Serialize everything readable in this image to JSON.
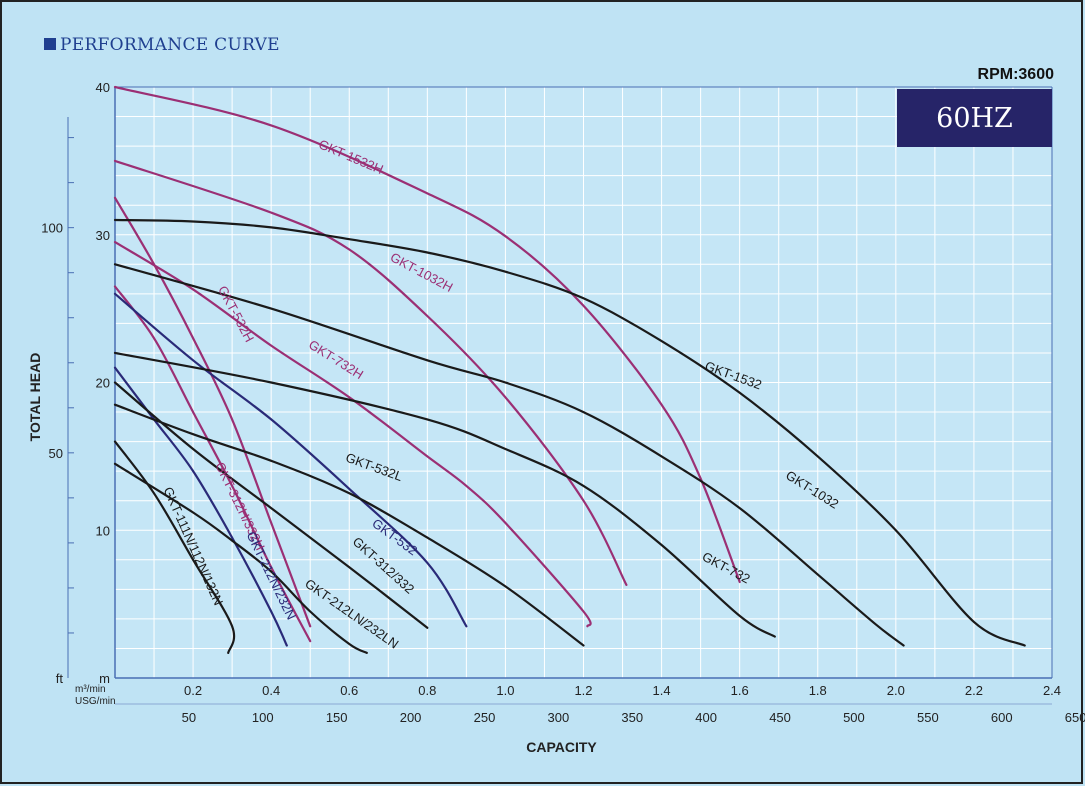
{
  "title": "PERFORMANCE CURVE",
  "rpm_label": "RPM:3600",
  "freq_label": "60HZ",
  "colors": {
    "background": "#bfe3f4",
    "grid": "#ffffff",
    "plot_bg": "#c5e6f6",
    "black": "#1a1a1a",
    "purple": "#9b2f74",
    "navy": "#2a2a78",
    "badge": "#262468",
    "title": "#1f3f8f"
  },
  "chart_data": {
    "type": "line",
    "title": "PERFORMANCE CURVE",
    "xlabel": "CAPACITY",
    "ylabel": "TOTAL HEAD",
    "xlim": [
      0,
      2.4
    ],
    "ylim": [
      0,
      40
    ],
    "grid": true,
    "x_unit_label": "m³/min",
    "x2_unit_label": "USG/min",
    "y_unit_label": "m",
    "y2_unit_label": "ft",
    "x_ticks": [
      "0.2",
      "0.4",
      "0.6",
      "0.8",
      "1.0",
      "1.2",
      "1.4",
      "1.6",
      "1.8",
      "2.0",
      "2.2",
      "2.4"
    ],
    "x2_ticks": [
      "50",
      "100",
      "150",
      "200",
      "250",
      "300",
      "350",
      "400",
      "450",
      "500",
      "550",
      "600",
      "650"
    ],
    "y_ticks": [
      "10",
      "20",
      "30",
      "40"
    ],
    "y2_ticks": [
      "50",
      "100"
    ],
    "series": [
      {
        "name": "GKT-1532H",
        "color": "purple",
        "points": [
          [
            0,
            40
          ],
          [
            0.4,
            37.4
          ],
          [
            0.8,
            32.8
          ],
          [
            1.0,
            29.9
          ],
          [
            1.2,
            25.2
          ],
          [
            1.4,
            18.5
          ],
          [
            1.5,
            13.5
          ],
          [
            1.6,
            6.5
          ]
        ]
      },
      {
        "name": "GKT-1032H",
        "color": "purple",
        "points": [
          [
            0,
            35
          ],
          [
            0.4,
            31.5
          ],
          [
            0.6,
            29
          ],
          [
            0.8,
            24.5
          ],
          [
            1.0,
            19
          ],
          [
            1.2,
            12
          ],
          [
            1.31,
            6.3
          ]
        ]
      },
      {
        "name": "GKT-732H",
        "color": "purple",
        "points": [
          [
            0,
            29.5
          ],
          [
            0.2,
            26.3
          ],
          [
            0.4,
            22.5
          ],
          [
            0.6,
            19
          ],
          [
            0.8,
            15
          ],
          [
            0.9,
            13
          ],
          [
            1.0,
            10.5
          ],
          [
            1.2,
            4.5
          ],
          [
            1.21,
            3.5
          ]
        ]
      },
      {
        "name": "GKT-532H",
        "color": "purple",
        "points": [
          [
            0,
            32.5
          ],
          [
            0.1,
            28
          ],
          [
            0.2,
            23
          ],
          [
            0.3,
            17.5
          ],
          [
            0.4,
            10.5
          ],
          [
            0.5,
            3.5
          ]
        ]
      },
      {
        "name": "GKT-312H/332H",
        "color": "purple",
        "points": [
          [
            0,
            26.5
          ],
          [
            0.1,
            23
          ],
          [
            0.2,
            18
          ],
          [
            0.3,
            13
          ],
          [
            0.4,
            7.5
          ],
          [
            0.5,
            2.5
          ]
        ]
      },
      {
        "name": "GKT-532",
        "color": "navy",
        "points": [
          [
            0,
            26
          ],
          [
            0.2,
            21.5
          ],
          [
            0.4,
            17.5
          ],
          [
            0.6,
            12.8
          ],
          [
            0.8,
            7.8
          ],
          [
            0.9,
            3.5
          ]
        ]
      },
      {
        "name": "GKT-212N/232N",
        "color": "navy",
        "points": [
          [
            0,
            21
          ],
          [
            0.1,
            17.5
          ],
          [
            0.2,
            14
          ],
          [
            0.3,
            9.5
          ],
          [
            0.4,
            4.5
          ],
          [
            0.44,
            2.2
          ]
        ]
      },
      {
        "name": "GKT-1532",
        "color": "black",
        "points": [
          [
            0,
            31
          ],
          [
            0.2,
            30.9
          ],
          [
            0.4,
            30.5
          ],
          [
            0.6,
            29.7
          ],
          [
            0.8,
            28.8
          ],
          [
            1.0,
            27.5
          ],
          [
            1.2,
            25.7
          ],
          [
            1.4,
            22.8
          ],
          [
            1.6,
            19.3
          ],
          [
            1.8,
            15
          ],
          [
            2.0,
            10
          ],
          [
            2.2,
            3.8
          ],
          [
            2.33,
            2.2
          ]
        ]
      },
      {
        "name": "GKT-1032",
        "color": "black",
        "points": [
          [
            0,
            28
          ],
          [
            0.4,
            25
          ],
          [
            0.8,
            21.5
          ],
          [
            1.0,
            20
          ],
          [
            1.2,
            18
          ],
          [
            1.4,
            15
          ],
          [
            1.6,
            11.5
          ],
          [
            1.8,
            7
          ],
          [
            1.95,
            3.6
          ],
          [
            2.02,
            2.2
          ]
        ]
      },
      {
        "name": "GKT-732",
        "color": "black",
        "points": [
          [
            0,
            22
          ],
          [
            0.4,
            20
          ],
          [
            0.8,
            17.5
          ],
          [
            1.0,
            15.5
          ],
          [
            1.2,
            13
          ],
          [
            1.4,
            9
          ],
          [
            1.6,
            4.2
          ],
          [
            1.69,
            2.8
          ]
        ]
      },
      {
        "name": "GKT-532L",
        "color": "black",
        "points": [
          [
            0,
            18.5
          ],
          [
            0.2,
            16.5
          ],
          [
            0.4,
            14.7
          ],
          [
            0.6,
            12.5
          ],
          [
            0.8,
            9.5
          ],
          [
            1.0,
            6.2
          ],
          [
            1.2,
            2.2
          ]
        ]
      },
      {
        "name": "GKT-312/332",
        "color": "black",
        "points": [
          [
            0,
            20
          ],
          [
            0.2,
            15.5
          ],
          [
            0.4,
            11.5
          ],
          [
            0.6,
            7.5
          ],
          [
            0.8,
            3.4
          ]
        ]
      },
      {
        "name": "GKT-212LN/232LN",
        "color": "black",
        "points": [
          [
            0,
            14.5
          ],
          [
            0.2,
            11.2
          ],
          [
            0.3,
            9.3
          ],
          [
            0.4,
            7.2
          ],
          [
            0.5,
            4.5
          ],
          [
            0.6,
            2.3
          ],
          [
            0.645,
            1.7
          ]
        ]
      },
      {
        "name": "GKT-111N/112N/132N",
        "color": "black",
        "points": [
          [
            0,
            16
          ],
          [
            0.1,
            12.5
          ],
          [
            0.2,
            8
          ],
          [
            0.3,
            3.5
          ],
          [
            0.29,
            1.7
          ]
        ]
      }
    ],
    "curve_labels": [
      {
        "text": "GKT-1532H",
        "x": 0.6,
        "y": 35,
        "angle": 23,
        "color": "purple"
      },
      {
        "text": "GKT-1032H",
        "x": 0.78,
        "y": 27.2,
        "angle": 28,
        "color": "purple"
      },
      {
        "text": "GKT-732H",
        "x": 0.56,
        "y": 21.3,
        "angle": 32,
        "color": "purple"
      },
      {
        "text": "GKT-532H",
        "x": 0.3,
        "y": 24.5,
        "angle": 62,
        "color": "purple"
      },
      {
        "text": "GKT-312H/332H",
        "x": 0.31,
        "y": 11.5,
        "angle": 64,
        "color": "purple"
      },
      {
        "text": "GKT-532",
        "x": 0.71,
        "y": 9.3,
        "angle": 36,
        "color": "navy"
      },
      {
        "text": "GKT-212N/232N",
        "x": 0.39,
        "y": 6.8,
        "angle": 64,
        "color": "navy"
      },
      {
        "text": "GKT-1532",
        "x": 1.58,
        "y": 20.2,
        "angle": 20,
        "color": "black"
      },
      {
        "text": "GKT-1032",
        "x": 1.78,
        "y": 12.5,
        "angle": 32,
        "color": "black"
      },
      {
        "text": "GKT-732",
        "x": 1.56,
        "y": 7.2,
        "angle": 28,
        "color": "black"
      },
      {
        "text": "GKT-532L",
        "x": 0.66,
        "y": 14.0,
        "angle": 20,
        "color": "black"
      },
      {
        "text": "GKT-312/332",
        "x": 0.68,
        "y": 7.4,
        "angle": 42,
        "color": "black"
      },
      {
        "text": "GKT-212LN/232LN",
        "x": 0.6,
        "y": 4.1,
        "angle": 35,
        "color": "black"
      },
      {
        "text": "GKT-111N/112N/132N",
        "x": 0.19,
        "y": 8.8,
        "angle": 66,
        "color": "black"
      }
    ]
  }
}
